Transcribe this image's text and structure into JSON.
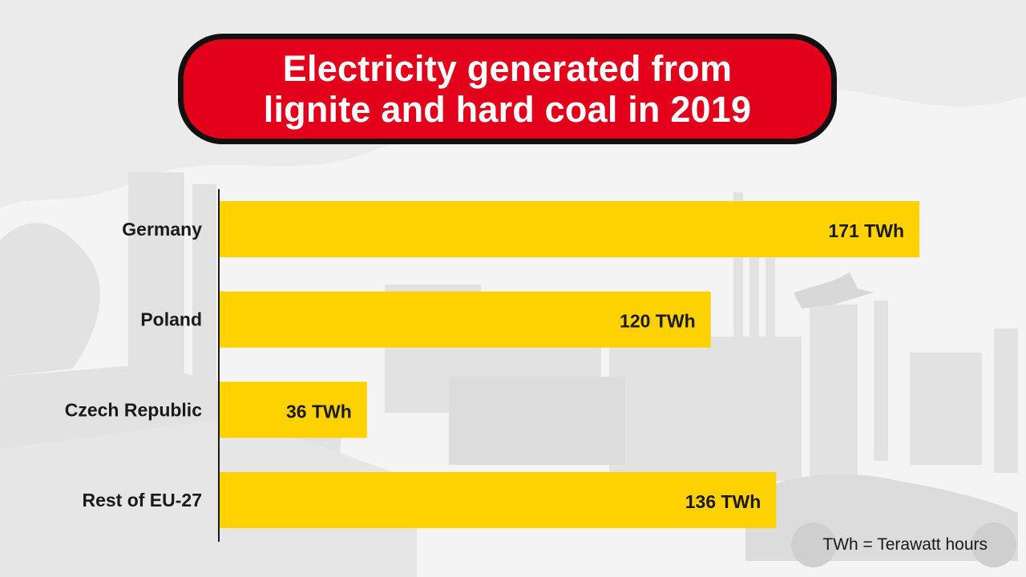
{
  "title": {
    "line1": "Electricity generated from",
    "line2": "lignite and hard coal in 2019"
  },
  "footnote": "TWh = Terawatt hours",
  "colors": {
    "bar": "#fed200",
    "banner": "#e2001a",
    "banner_border": "#111111",
    "background_art": "#d6d6d6"
  },
  "chart_data": {
    "type": "bar",
    "orientation": "horizontal",
    "title": "Electricity generated from lignite and hard coal in 2019",
    "categories": [
      "Germany",
      "Poland",
      "Czech Republic",
      "Rest of EU-27"
    ],
    "values": [
      171,
      120,
      36,
      136
    ],
    "value_labels": [
      "171 TWh",
      "120 TWh",
      "36 TWh",
      "136 TWh"
    ],
    "unit": "TWh",
    "xlim": [
      0,
      171
    ],
    "grid": false,
    "legend": "none"
  }
}
